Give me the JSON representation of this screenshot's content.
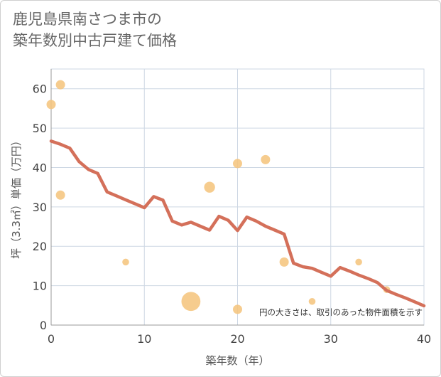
{
  "title_line1": "鹿児島県南さつま市の",
  "title_line2": "築年数別中古戸建て価格",
  "chart_data": {
    "type": "scatter",
    "title": "鹿児島県南さつま市の築年数別中古戸建て価格",
    "xlabel": "築年数（年）",
    "ylabel": "坪（3.3㎡）単価（万円）",
    "xlim": [
      0,
      40
    ],
    "ylim": [
      0,
      65
    ],
    "x_ticks": [
      0,
      10,
      20,
      30,
      40
    ],
    "y_ticks": [
      0,
      10,
      20,
      30,
      40,
      50,
      60
    ],
    "grid": true,
    "note": "円の大きさは、取引のあった物件面積を示す",
    "colors": {
      "bubble": "#f5c57e",
      "trend": "#d4705a",
      "grid": "#cdd7e3"
    },
    "bubbles": [
      {
        "x": 0,
        "y": 56,
        "size": 2
      },
      {
        "x": 1,
        "y": 61,
        "size": 2
      },
      {
        "x": 1,
        "y": 33,
        "size": 2
      },
      {
        "x": 8,
        "y": 16,
        "size": 1
      },
      {
        "x": 15,
        "y": 6,
        "size": 10
      },
      {
        "x": 17,
        "y": 35,
        "size": 3
      },
      {
        "x": 20,
        "y": 41,
        "size": 2
      },
      {
        "x": 20,
        "y": 4,
        "size": 2
      },
      {
        "x": 23,
        "y": 42,
        "size": 2
      },
      {
        "x": 25,
        "y": 16,
        "size": 2
      },
      {
        "x": 28,
        "y": 6,
        "size": 1
      },
      {
        "x": 33,
        "y": 16,
        "size": 1
      },
      {
        "x": 36,
        "y": 9,
        "size": 1
      }
    ],
    "trend": {
      "x": [
        0,
        1,
        2,
        3,
        4,
        5,
        6,
        7,
        8,
        9,
        10,
        11,
        12,
        13,
        14,
        15,
        16,
        17,
        18,
        19,
        20,
        21,
        22,
        23,
        24,
        25,
        26,
        27,
        28,
        29,
        30,
        31,
        32,
        33,
        34,
        35,
        36,
        37,
        38,
        39,
        40
      ],
      "y": [
        46.7,
        45.9,
        44.9,
        41.5,
        39.5,
        38.5,
        33.8,
        32.8,
        31.8,
        30.8,
        29.8,
        32.6,
        31.7,
        26.4,
        25.4,
        26.1,
        25.1,
        24.1,
        27.6,
        26.6,
        24.0,
        27.4,
        26.4,
        25.1,
        24.1,
        23.1,
        15.7,
        14.8,
        14.4,
        13.4,
        12.4,
        14.6,
        13.7,
        12.7,
        11.8,
        10.8,
        8.8,
        7.8,
        6.9,
        5.9,
        4.9
      ]
    }
  }
}
